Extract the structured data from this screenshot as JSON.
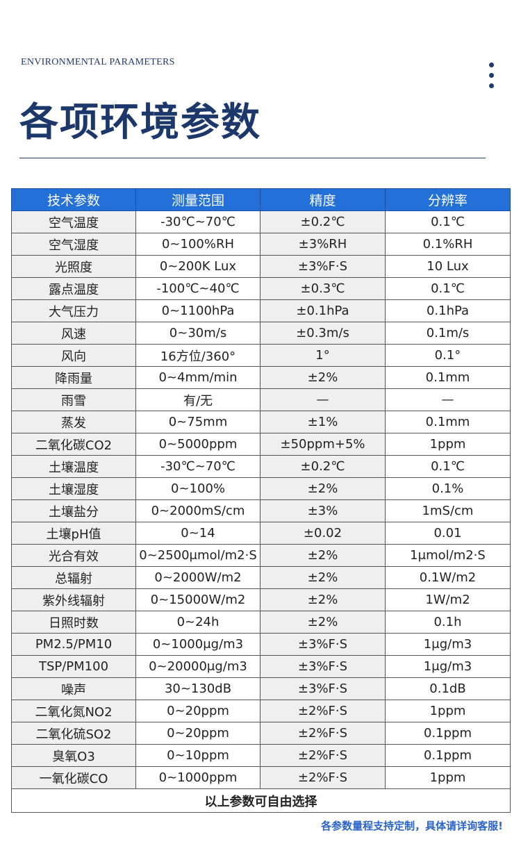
{
  "header": {
    "subtitle": "ENVIRONMENTAL PARAMETERS",
    "title": "各项环境参数"
  },
  "table": {
    "headers": [
      "技术参数",
      "测量范围",
      "精度",
      "分辨率"
    ],
    "rows": [
      [
        "空气温度",
        "-30℃~70℃",
        "±0.2℃",
        "0.1℃"
      ],
      [
        "空气湿度",
        "0~100%RH",
        "±3%RH",
        "0.1%RH"
      ],
      [
        "光照度",
        "0~200K Lux",
        "±3%F·S",
        "10 Lux"
      ],
      [
        "露点温度",
        "-100℃~40℃",
        "±0.3℃",
        "0.1℃"
      ],
      [
        "大气压力",
        "0~1100hPa",
        "±0.1hPa",
        "0.1hPa"
      ],
      [
        "风速",
        "0~30m/s",
        "±0.3m/s",
        "0.1m/s"
      ],
      [
        "风向",
        "16方位/360°",
        "1°",
        "0.1°"
      ],
      [
        "降雨量",
        "0~4mm/min",
        "±2%",
        "0.1mm"
      ],
      [
        "雨雪",
        "有/无",
        "—",
        "—"
      ],
      [
        "蒸发",
        "0~75mm",
        "±1%",
        "0.1mm"
      ],
      [
        "二氧化碳CO2",
        "0~5000ppm",
        "±50ppm+5%",
        "1ppm"
      ],
      [
        "土壤温度",
        "-30℃~70℃",
        "±0.2℃",
        "0.1℃"
      ],
      [
        "土壤湿度",
        "0~100%",
        "±2%",
        "0.1%"
      ],
      [
        "土壤盐分",
        "0~2000mS/cm",
        "±3%",
        "1mS/cm"
      ],
      [
        "土壤pH值",
        "0~14",
        "±0.02",
        "0.01"
      ],
      [
        "光合有效",
        "0~2500μmol/m2·S",
        "±2%",
        "1μmol/m2·S"
      ],
      [
        "总辐射",
        "0~2000W/m2",
        "±2%",
        "0.1W/m2"
      ],
      [
        "紫外线辐射",
        "0~15000W/m2",
        "±2%",
        "1W/m2"
      ],
      [
        "日照时数",
        "0~24h",
        "±2%",
        "0.1h"
      ],
      [
        "PM2.5/PM10",
        "0~1000μg/m3",
        "±3%F·S",
        "1μg/m3"
      ],
      [
        "TSP/PM100",
        "0~20000μg/m3",
        "±3%F·S",
        "1μg/m3"
      ],
      [
        "噪声",
        "30~130dB",
        "±3%F·S",
        "0.1dB"
      ],
      [
        "二氧化氮NO2",
        "0~20ppm",
        "±2%F·S",
        "1ppm"
      ],
      [
        "二氧化硫SO2",
        "0~20ppm",
        "±2%F·S",
        "0.1ppm"
      ],
      [
        "臭氧O3",
        "0~10ppm",
        "±2%F·S",
        "0.1ppm"
      ],
      [
        "一氧化碳CO",
        "0~1000ppm",
        "±2%F·S",
        "1ppm"
      ]
    ],
    "footer": "以上参数可自由选择"
  },
  "note": "各参数量程支持定制，具体请详询客服!",
  "colors": {
    "title": "#1c3769",
    "header_bg": "#2470d9",
    "note": "#2a63c9"
  }
}
